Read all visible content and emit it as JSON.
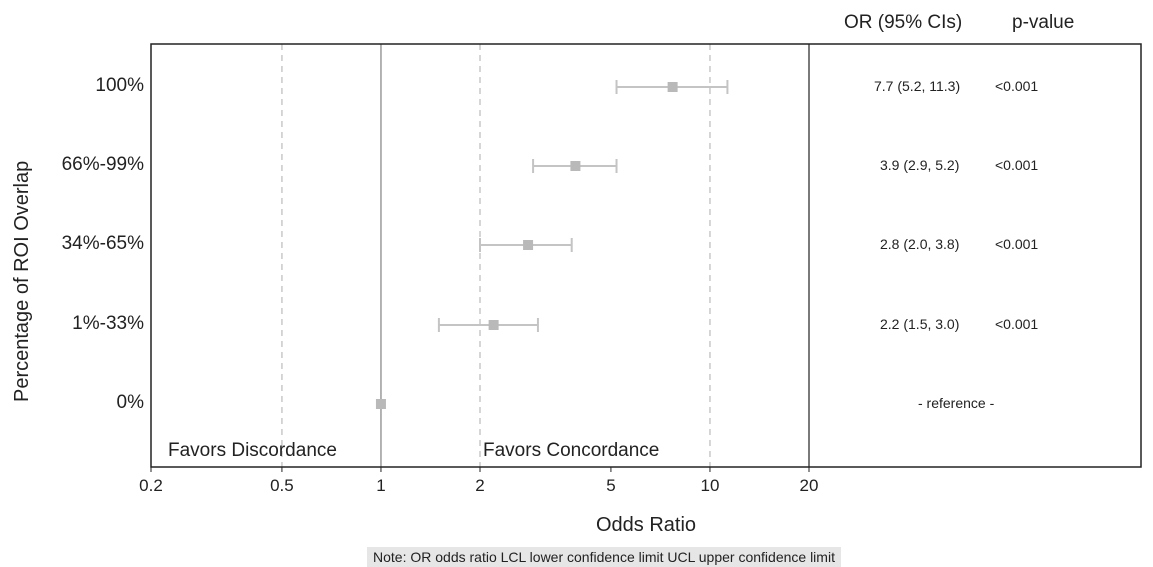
{
  "chart_data": {
    "type": "forest",
    "xlabel": "Odds Ratio",
    "ylabel": "Percentage of ROI Overlap",
    "x_scale": "log",
    "xlim": [
      0.2,
      20
    ],
    "x_ticks": [
      "0.2",
      "0.5",
      "1",
      "2",
      "5",
      "10",
      "20"
    ],
    "x_tick_values": [
      0.2,
      0.5,
      1,
      2,
      5,
      10,
      20
    ],
    "reference_line": 1,
    "dashed_gridlines": [
      0.5,
      2,
      10
    ],
    "favor_left": "Favors Discordance",
    "favor_right": "Favors Concordance",
    "table_headers": {
      "or": "OR (95% CIs)",
      "p": "p-value"
    },
    "rows": [
      {
        "label": "100%",
        "or": 7.7,
        "lcl": 5.2,
        "ucl": 11.3,
        "or_text": "7.7 (5.2, 11.3)",
        "p": "<0.001"
      },
      {
        "label": "66%-99%",
        "or": 3.9,
        "lcl": 2.9,
        "ucl": 5.2,
        "or_text": "3.9 (2.9, 5.2)",
        "p": "<0.001"
      },
      {
        "label": "34%-65%",
        "or": 2.8,
        "lcl": 2.0,
        "ucl": 3.8,
        "or_text": "2.8 (2.0, 3.8)",
        "p": "<0.001"
      },
      {
        "label": "1%-33%",
        "or": 2.2,
        "lcl": 1.5,
        "ucl": 3.0,
        "or_text": "2.2 (1.5, 3.0)",
        "p": "<0.001"
      },
      {
        "label": "0%",
        "or": 1.0,
        "lcl": null,
        "ucl": null,
        "or_text": "- reference -",
        "p": ""
      }
    ],
    "note": "Note: OR odds ratio LCL lower confidence limit UCL upper confidence limit",
    "colors": {
      "marker": "#b9b9b9",
      "ci": "#c4c4c4",
      "axis": "#222222",
      "refline": "#9a9a9a",
      "grid": "#c8c8c8"
    }
  }
}
